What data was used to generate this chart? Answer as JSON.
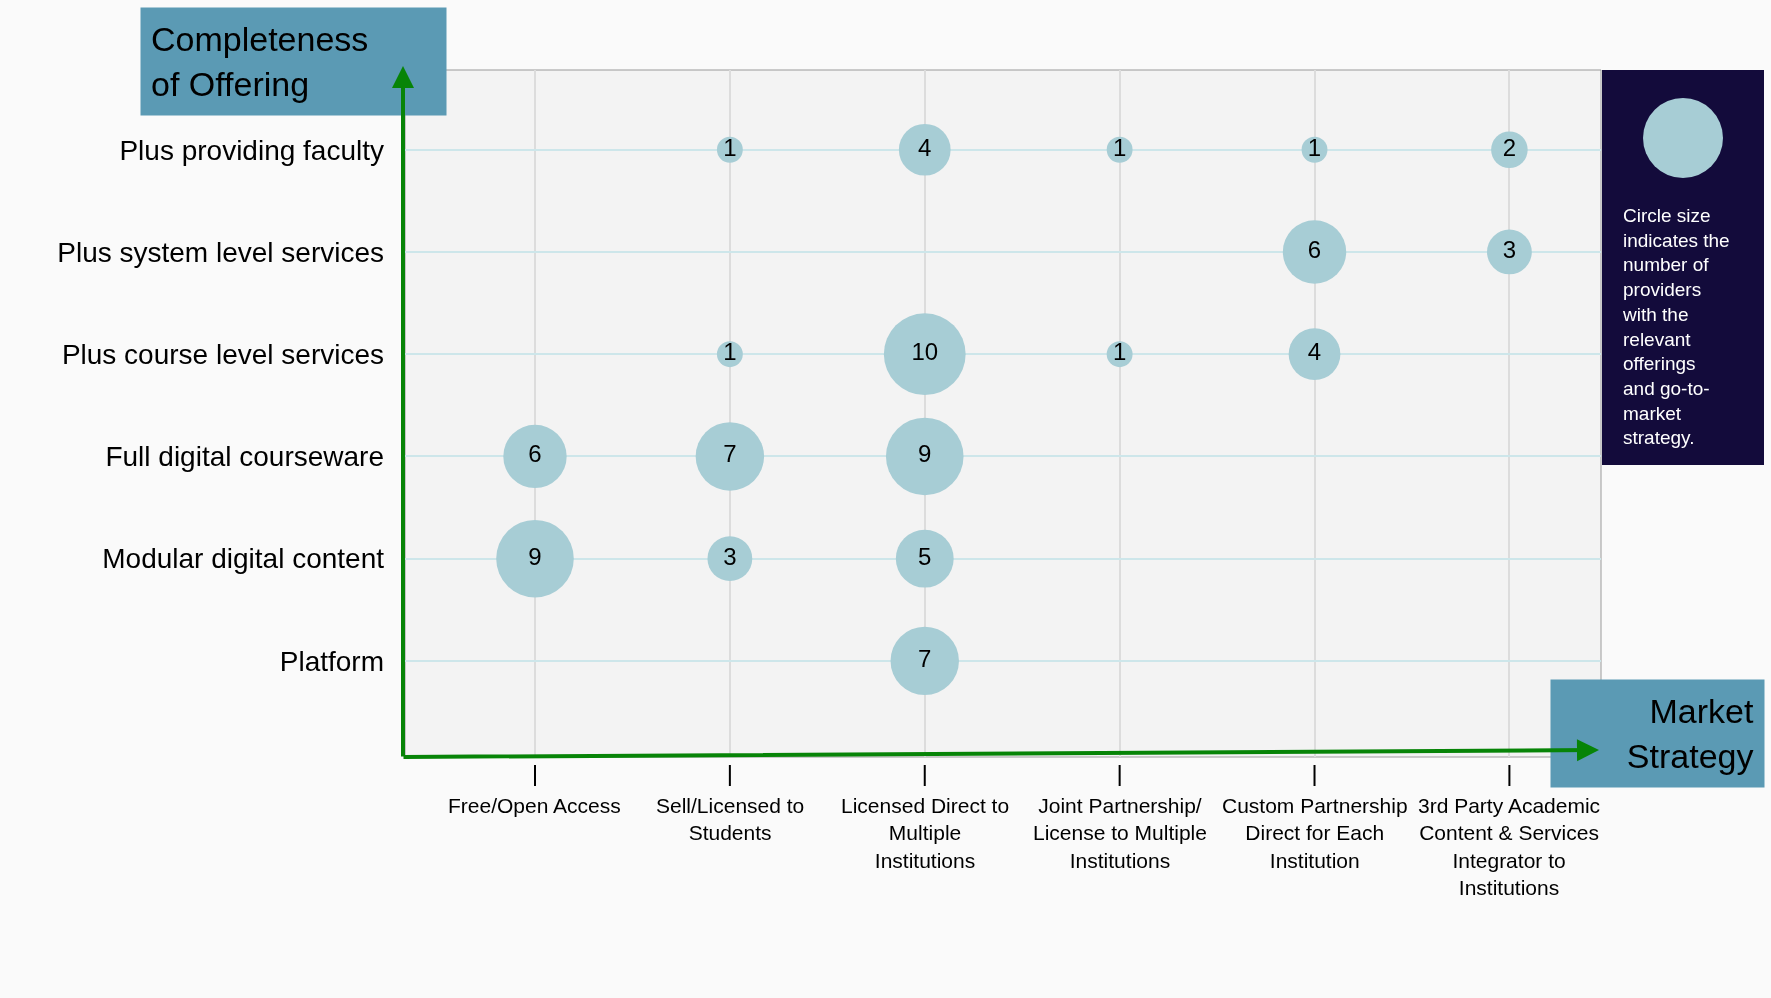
{
  "chart_data": {
    "type": "heatmap",
    "xlabel": "Market\nStrategy",
    "ylabel": "Completeness\nof Offering",
    "categories": [
      "Free/Open Access",
      "Sell/Licensed to Students",
      "Licensed Direct to Multiple Institutions",
      "Joint Partnership/ License to Multiple Institutions",
      "Custom Partnership Direct for Each Institution",
      "3rd Party Academic Content & Services Integrator to Institutions"
    ],
    "y_categories": [
      "Plus providing faculty",
      "Plus system level services",
      "Plus course level services",
      "Full digital courseware",
      "Modular digital content",
      "Platform"
    ],
    "cells": [
      [
        null,
        1,
        4,
        1,
        1,
        2
      ],
      [
        null,
        null,
        null,
        null,
        6,
        3
      ],
      [
        null,
        1,
        10,
        1,
        4,
        null
      ],
      [
        6,
        7,
        9,
        null,
        null,
        null
      ],
      [
        9,
        3,
        5,
        null,
        null,
        null
      ],
      [
        null,
        null,
        7,
        null,
        null,
        null
      ]
    ],
    "color": "#a7cdd5",
    "data_labels": true,
    "grid": true,
    "annotations": [
      "Circle size\nindicates the\nnumber of\nproviders\nwith the\nrelevant\nofferings\nand go-to-\nmarket\nstrategy."
    ]
  }
}
